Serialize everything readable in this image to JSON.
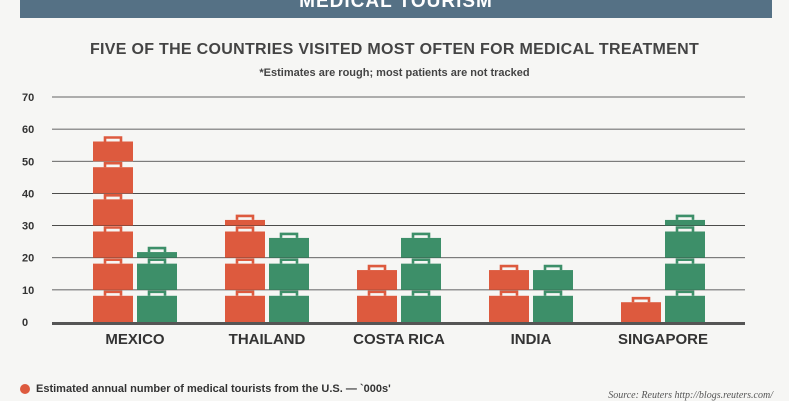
{
  "banner": "MEDICAL TOURISM",
  "legend_label": "Estimated annual number of medical tourists from the U.S. — `000s'",
  "source": "Source: Reuters http://blogs.reuters.com/",
  "colors": {
    "series1": "#dd5a3e",
    "series2": "#3d8f69",
    "axis": "#555555",
    "grid": "#333333"
  },
  "icon": "briefcase-icon",
  "chart_data": {
    "type": "bar",
    "title": "FIVE OF THE COUNTRIES VISITED MOST OFTEN FOR MEDICAL TREATMENT",
    "subtitle": "*Estimates are rough; most patients are not tracked",
    "categories": [
      "MEXICO",
      "THAILAND",
      "COSTA RICA",
      "INDIA",
      "SINGAPORE"
    ],
    "yticks": [
      0,
      10,
      20,
      30,
      40,
      50,
      60,
      70
    ],
    "ylim": [
      0,
      70
    ],
    "grid": true,
    "legend_position": "bottom-left",
    "series": [
      {
        "name": "Estimated annual number of medical tourists from the U.S. — `000s'",
        "values": [
          58,
          33,
          18,
          18,
          8
        ]
      },
      {
        "values": [
          23,
          28,
          28,
          18,
          33
        ]
      }
    ]
  }
}
